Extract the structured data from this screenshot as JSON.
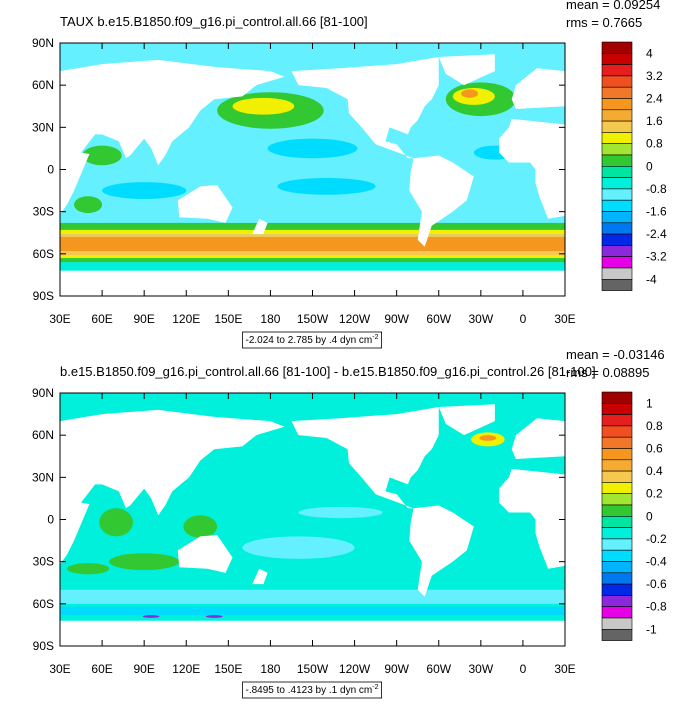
{
  "panels": [
    {
      "title": "TAUX b.e15.B1850.f09_g16.pi_control.all.66 [81-100]",
      "mean": "mean = 0.09254",
      "rms": "rms = 0.7665",
      "range_note": {
        "text": "-2.024 to 2.785 by .4 dyn cm",
        "superscript": "-2"
      },
      "lat_labels": [
        "90N",
        "60N",
        "30N",
        "0",
        "30S",
        "60S",
        "90S"
      ],
      "lon_labels": [
        "30E",
        "60E",
        "90E",
        "120E",
        "150E",
        "180",
        "150W",
        "120W",
        "90W",
        "60W",
        "30W",
        "0",
        "30E"
      ],
      "colorbar_labels": [
        "4",
        "3.2",
        "2.4",
        "1.6",
        "0.8",
        "0",
        "-0.8",
        "-1.6",
        "-2.4",
        "-3.2",
        "-4"
      ]
    },
    {
      "title": "b.e15.B1850.f09_g16.pi_control.all.66 [81-100] - b.e15.B1850.f09_g16.pi_control.26 [81-100]",
      "mean": "mean = -0.03146",
      "rms": "rms = 0.08895",
      "range_note": {
        "text": "-.8495 to .4123 by .1 dyn cm",
        "superscript": "-2"
      },
      "lat_labels": [
        "90N",
        "60N",
        "30N",
        "0",
        "30S",
        "60S",
        "90S"
      ],
      "lon_labels": [
        "30E",
        "60E",
        "90E",
        "120E",
        "150E",
        "180",
        "150W",
        "120W",
        "90W",
        "60W",
        "30W",
        "0",
        "30E"
      ],
      "colorbar_labels": [
        "1",
        "0.8",
        "0.6",
        "0.4",
        "0.2",
        "0",
        "-0.2",
        "-0.4",
        "-0.6",
        "-0.8",
        "-1"
      ]
    }
  ],
  "colorbar_colors": [
    "#a00000",
    "#c80000",
    "#e61e1e",
    "#f05020",
    "#f07828",
    "#f5961e",
    "#f5aa32",
    "#f5c850",
    "#f0f000",
    "#a0e632",
    "#32c832",
    "#00e6a0",
    "#00f0dc",
    "#64f0ff",
    "#00dcff",
    "#00b4ff",
    "#0078f0",
    "#0028e6",
    "#8c28dc",
    "#e600e6",
    "#c8c8c8",
    "#646464"
  ]
}
